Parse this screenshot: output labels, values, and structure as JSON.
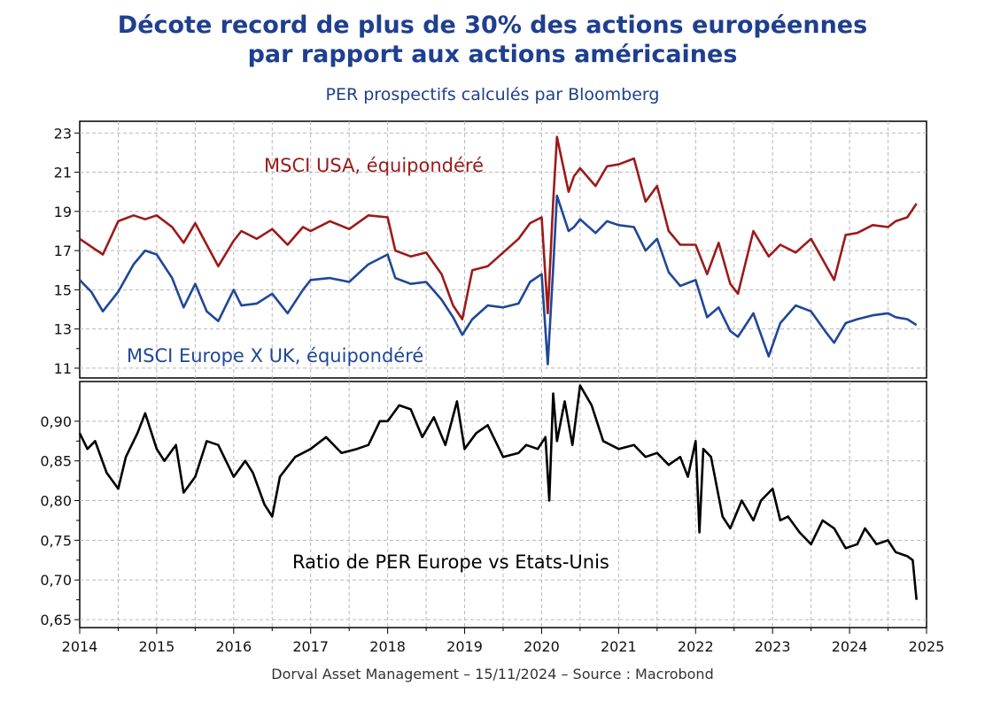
{
  "title_line1": "Décote record de plus de 30% des actions européennes",
  "title_line2": "par rapport aux actions américaines",
  "subtitle": "PER prospectifs calculés par Bloomberg",
  "source": "Dorval Asset Management – 15/11/2024 –   Source : Macrobond",
  "chart_data": [
    {
      "type": "line",
      "panel": "top",
      "ylim": [
        10.5,
        23.6
      ],
      "yticks": [
        11,
        13,
        15,
        17,
        19,
        21,
        23
      ],
      "grid": true,
      "series": [
        {
          "name": "MSCI USA, équipondéré",
          "color": "#9c1a1a",
          "x": [
            2014.0,
            2014.15,
            2014.3,
            2014.5,
            2014.7,
            2014.85,
            2015.0,
            2015.2,
            2015.35,
            2015.5,
            2015.65,
            2015.8,
            2016.0,
            2016.1,
            2016.3,
            2016.5,
            2016.7,
            2016.9,
            2017.0,
            2017.25,
            2017.5,
            2017.75,
            2018.0,
            2018.1,
            2018.3,
            2018.5,
            2018.7,
            2018.85,
            2018.97,
            2019.1,
            2019.3,
            2019.5,
            2019.7,
            2019.85,
            2020.0,
            2020.08,
            2020.15,
            2020.2,
            2020.35,
            2020.42,
            2020.5,
            2020.7,
            2020.85,
            2021.0,
            2021.2,
            2021.35,
            2021.5,
            2021.65,
            2021.8,
            2022.0,
            2022.15,
            2022.3,
            2022.45,
            2022.55,
            2022.75,
            2022.95,
            2023.1,
            2023.3,
            2023.5,
            2023.7,
            2023.8,
            2023.95,
            2024.1,
            2024.3,
            2024.5,
            2024.6,
            2024.75,
            2024.87
          ],
          "values": [
            17.6,
            17.2,
            16.8,
            18.5,
            18.8,
            18.6,
            18.8,
            18.2,
            17.4,
            18.4,
            17.3,
            16.2,
            17.5,
            18.0,
            17.6,
            18.1,
            17.3,
            18.2,
            18.0,
            18.5,
            18.1,
            18.8,
            18.7,
            17.0,
            16.7,
            16.9,
            15.8,
            14.2,
            13.5,
            16.0,
            16.2,
            16.9,
            17.6,
            18.4,
            18.7,
            13.8,
            19.5,
            22.8,
            20.0,
            20.8,
            21.2,
            20.3,
            21.3,
            21.4,
            21.7,
            19.5,
            20.3,
            18.0,
            17.3,
            17.3,
            15.8,
            17.4,
            15.3,
            14.8,
            18.0,
            16.7,
            17.3,
            16.9,
            17.6,
            16.2,
            15.5,
            17.8,
            17.9,
            18.3,
            18.2,
            18.5,
            18.7,
            19.4
          ]
        },
        {
          "name": "MSCI Europe X UK, équipondéré",
          "color": "#1f4796",
          "x": [
            2014.0,
            2014.15,
            2014.3,
            2014.5,
            2014.7,
            2014.85,
            2015.0,
            2015.2,
            2015.35,
            2015.5,
            2015.65,
            2015.8,
            2016.0,
            2016.1,
            2016.3,
            2016.5,
            2016.7,
            2016.9,
            2017.0,
            2017.25,
            2017.5,
            2017.75,
            2018.0,
            2018.1,
            2018.3,
            2018.5,
            2018.7,
            2018.85,
            2018.97,
            2019.1,
            2019.3,
            2019.5,
            2019.7,
            2019.85,
            2020.0,
            2020.08,
            2020.15,
            2020.2,
            2020.35,
            2020.42,
            2020.5,
            2020.7,
            2020.85,
            2021.0,
            2021.2,
            2021.35,
            2021.5,
            2021.65,
            2021.8,
            2022.0,
            2022.15,
            2022.3,
            2022.45,
            2022.55,
            2022.75,
            2022.95,
            2023.1,
            2023.3,
            2023.5,
            2023.7,
            2023.8,
            2023.95,
            2024.1,
            2024.3,
            2024.5,
            2024.6,
            2024.75,
            2024.87
          ],
          "values": [
            15.5,
            14.9,
            13.9,
            14.9,
            16.3,
            17.0,
            16.8,
            15.6,
            14.1,
            15.3,
            13.9,
            13.4,
            15.0,
            14.2,
            14.3,
            14.8,
            13.8,
            15.0,
            15.5,
            15.6,
            15.4,
            16.3,
            16.8,
            15.6,
            15.3,
            15.4,
            14.5,
            13.6,
            12.7,
            13.5,
            14.2,
            14.1,
            14.3,
            15.4,
            15.8,
            11.2,
            16.1,
            19.8,
            18.0,
            18.2,
            18.6,
            17.9,
            18.5,
            18.3,
            18.2,
            17.0,
            17.6,
            15.9,
            15.2,
            15.5,
            13.6,
            14.1,
            12.9,
            12.6,
            13.8,
            11.6,
            13.3,
            14.2,
            13.9,
            12.8,
            12.3,
            13.3,
            13.5,
            13.7,
            13.8,
            13.6,
            13.5,
            13.2
          ]
        }
      ],
      "annotations": [
        "MSCI USA, équipondéré",
        "MSCI Europe X UK, équipondéré"
      ]
    },
    {
      "type": "line",
      "panel": "bottom",
      "ylim": [
        0.64,
        0.95
      ],
      "yticks": [
        "0,65",
        "0,70",
        "0,75",
        "0,80",
        "0,85",
        "0,90"
      ],
      "ytick_values": [
        0.65,
        0.7,
        0.75,
        0.8,
        0.85,
        0.9
      ],
      "xlim": [
        2014,
        2025
      ],
      "xticks": [
        "2014",
        "2015",
        "2016",
        "2017",
        "2018",
        "2019",
        "2020",
        "2021",
        "2022",
        "2023",
        "2024",
        "2025"
      ],
      "grid": true,
      "series": [
        {
          "name": "Ratio de PER Europe vs Etats-Unis",
          "color": "#000000",
          "x": [
            2014.0,
            2014.1,
            2014.2,
            2014.35,
            2014.5,
            2014.6,
            2014.75,
            2014.85,
            2015.0,
            2015.1,
            2015.25,
            2015.35,
            2015.5,
            2015.65,
            2015.8,
            2016.0,
            2016.15,
            2016.25,
            2016.4,
            2016.5,
            2016.6,
            2016.8,
            2017.0,
            2017.2,
            2017.4,
            2017.6,
            2017.75,
            2017.9,
            2018.0,
            2018.15,
            2018.3,
            2018.45,
            2018.6,
            2018.75,
            2018.9,
            2019.0,
            2019.15,
            2019.3,
            2019.5,
            2019.7,
            2019.8,
            2019.95,
            2020.05,
            2020.1,
            2020.15,
            2020.2,
            2020.3,
            2020.4,
            2020.5,
            2020.65,
            2020.8,
            2021.0,
            2021.2,
            2021.35,
            2021.5,
            2021.65,
            2021.8,
            2021.9,
            2022.0,
            2022.05,
            2022.1,
            2022.2,
            2022.35,
            2022.45,
            2022.6,
            2022.75,
            2022.85,
            2023.0,
            2023.1,
            2023.2,
            2023.35,
            2023.5,
            2023.65,
            2023.8,
            2023.95,
            2024.1,
            2024.2,
            2024.35,
            2024.5,
            2024.6,
            2024.75,
            2024.82,
            2024.87
          ],
          "values": [
            0.885,
            0.865,
            0.875,
            0.835,
            0.815,
            0.855,
            0.885,
            0.91,
            0.865,
            0.85,
            0.87,
            0.81,
            0.83,
            0.875,
            0.87,
            0.83,
            0.85,
            0.835,
            0.795,
            0.78,
            0.83,
            0.855,
            0.865,
            0.88,
            0.86,
            0.865,
            0.87,
            0.9,
            0.9,
            0.92,
            0.915,
            0.88,
            0.905,
            0.87,
            0.925,
            0.865,
            0.885,
            0.895,
            0.855,
            0.86,
            0.87,
            0.865,
            0.88,
            0.8,
            0.935,
            0.875,
            0.925,
            0.87,
            0.945,
            0.92,
            0.875,
            0.865,
            0.87,
            0.855,
            0.86,
            0.845,
            0.855,
            0.83,
            0.875,
            0.76,
            0.865,
            0.855,
            0.78,
            0.765,
            0.8,
            0.775,
            0.8,
            0.815,
            0.775,
            0.78,
            0.76,
            0.745,
            0.775,
            0.765,
            0.74,
            0.745,
            0.765,
            0.745,
            0.75,
            0.735,
            0.73,
            0.725,
            0.675
          ]
        }
      ],
      "annotations": [
        "Ratio de PER Europe vs Etats-Unis"
      ]
    }
  ]
}
